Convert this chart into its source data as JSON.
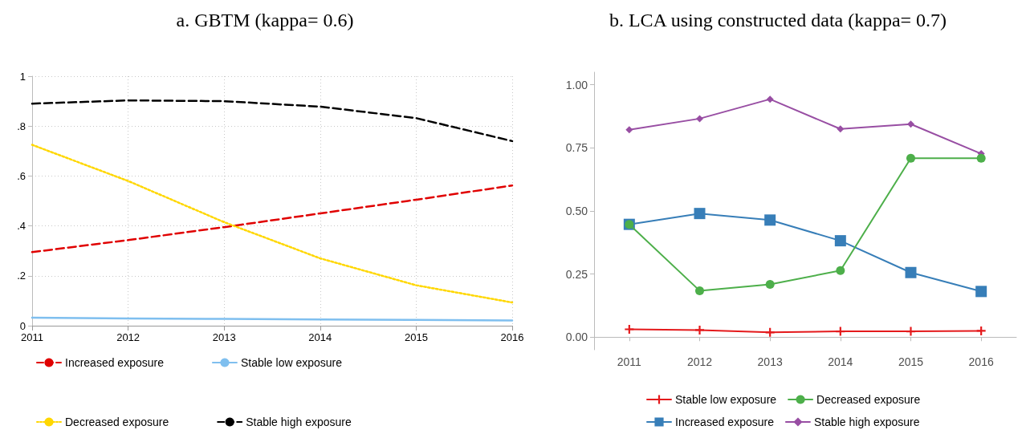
{
  "chart_data": [
    {
      "type": "line",
      "title": "a. GBTM (kappa= 0.6)",
      "x": [
        2011,
        2012,
        2013,
        2014,
        2015,
        2016
      ],
      "xlim": [
        2011,
        2016
      ],
      "xticks": [
        2011,
        2012,
        2013,
        2014,
        2015,
        2016
      ],
      "ylim": [
        0,
        1
      ],
      "yticks": [
        0,
        {
          "value": 0.2,
          "label": ".2"
        },
        {
          "value": 0.4,
          "label": ".4"
        },
        {
          "value": 0.6,
          "label": ".6"
        },
        {
          "value": 0.8,
          "label": ".8"
        },
        1
      ],
      "grid": true,
      "legend": "bottom",
      "marker": "none",
      "series": [
        {
          "name": "Increased exposure",
          "color": "#e00000",
          "line_style": "dashed",
          "values": [
            0.295,
            0.343,
            0.395,
            0.45,
            0.505,
            0.562
          ]
        },
        {
          "name": "Stable low exposure",
          "color": "#7fbfef",
          "line_style": "solid",
          "values": [
            0.032,
            0.029,
            0.027,
            0.025,
            0.023,
            0.021
          ]
        },
        {
          "name": "Decreased exposure",
          "color": "#ffd700",
          "line_style": "dotted",
          "values": [
            0.725,
            0.58,
            0.415,
            0.27,
            0.162,
            0.093
          ]
        },
        {
          "name": "Stable high exposure",
          "color": "#000000",
          "line_style": "dashed",
          "values": [
            0.89,
            0.903,
            0.9,
            0.878,
            0.832,
            0.74
          ]
        }
      ]
    },
    {
      "type": "line",
      "title": "b. LCA using constructed data (kappa= 0.7)",
      "categories": [
        "2011",
        "2012",
        "2013",
        "2014",
        "2015",
        "2016"
      ],
      "ylim": [
        -0.05,
        1.05
      ],
      "yticks": [
        {
          "value": 0,
          "label": "0.00"
        },
        {
          "value": 0.25,
          "label": "0.25"
        },
        {
          "value": 0.5,
          "label": "0.50"
        },
        {
          "value": 0.75,
          "label": "0.75"
        },
        {
          "value": 1,
          "label": "1.00"
        }
      ],
      "grid": false,
      "legend": "bottom",
      "line_style": "solid",
      "series": [
        {
          "name": "Stable low exposure",
          "color": "#e41a1c",
          "marker": "cross",
          "values": [
            0.031,
            0.028,
            0.019,
            0.023,
            0.023,
            0.025
          ]
        },
        {
          "name": "Decreased exposure",
          "color": "#4daf4a",
          "marker": "circle",
          "values": [
            0.447,
            0.184,
            0.209,
            0.264,
            0.709,
            0.709
          ]
        },
        {
          "name": "Increased exposure",
          "color": "#377eb8",
          "marker": "square",
          "values": [
            0.447,
            0.49,
            0.464,
            0.382,
            0.256,
            0.181
          ]
        },
        {
          "name": "Stable high exposure",
          "color": "#984ea3",
          "marker": "diamond",
          "values": [
            0.822,
            0.866,
            0.943,
            0.825,
            0.844,
            0.727
          ]
        }
      ]
    }
  ]
}
